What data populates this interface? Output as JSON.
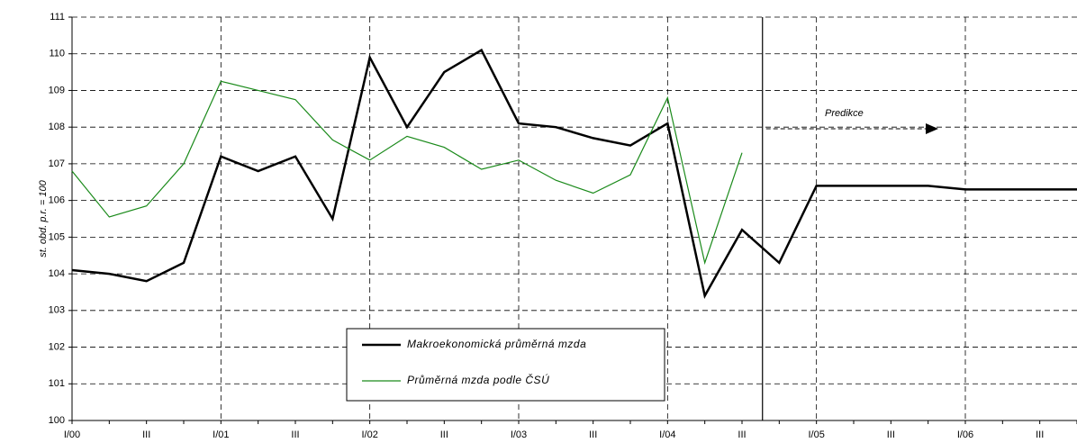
{
  "chart_data": {
    "type": "line",
    "ylabel": "st. obd. p.r. = 100",
    "annotation": "Predikce",
    "categories": [
      "I/00",
      null,
      "III",
      null,
      "I/01",
      null,
      "III",
      null,
      "I/02",
      null,
      "III",
      null,
      "I/03",
      null,
      "III",
      null,
      "I/04",
      null,
      "III",
      null,
      "I/05",
      null,
      "III",
      null,
      "I/06",
      null,
      "III",
      null
    ],
    "series": [
      {
        "name": "Makroekonomická průměrná mzda",
        "color": "#000000",
        "values": [
          104.1,
          104.0,
          103.8,
          104.3,
          107.2,
          106.8,
          107.2,
          105.5,
          109.9,
          108.0,
          109.5,
          110.1,
          108.1,
          108.0,
          107.7,
          107.5,
          108.1,
          103.4,
          105.2,
          104.3,
          106.4,
          106.4,
          106.4,
          106.4,
          106.3,
          106.3,
          106.3,
          106.3
        ]
      },
      {
        "name": "Průměrná mzda podle ČSÚ",
        "color": "#1a8a1a",
        "values": [
          106.8,
          105.55,
          105.85,
          107.0,
          109.25,
          109.0,
          108.75,
          107.65,
          107.1,
          107.75,
          107.45,
          106.85,
          107.1,
          106.55,
          106.2,
          106.7,
          108.8,
          104.3,
          107.3,
          null,
          null,
          null,
          null,
          null,
          null,
          null,
          null,
          null
        ]
      }
    ],
    "ylim": [
      100,
      111
    ],
    "yticks": [
      100,
      101,
      102,
      103,
      104,
      105,
      106,
      107,
      108,
      109,
      110,
      111
    ],
    "grid": true
  }
}
